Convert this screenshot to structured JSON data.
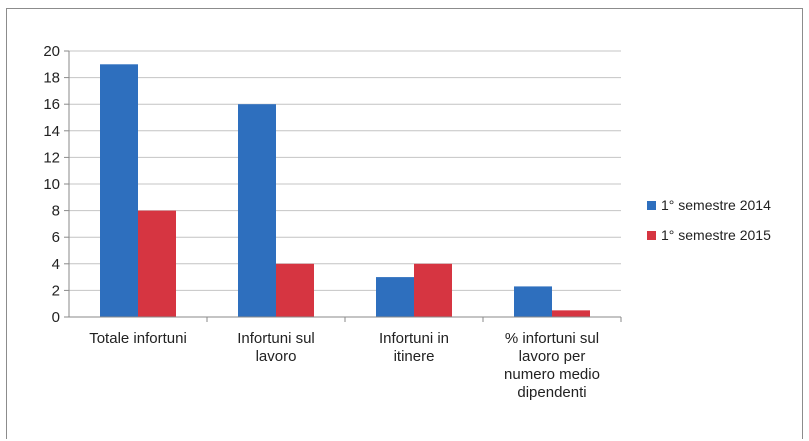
{
  "chart_data": {
    "type": "bar",
    "title": "",
    "xlabel": "",
    "ylabel": "",
    "ylim": [
      0,
      20
    ],
    "yticks": [
      0,
      2,
      4,
      6,
      8,
      10,
      12,
      14,
      16,
      18,
      20
    ],
    "grid": true,
    "legend_position": "right",
    "categories": [
      [
        "Totale infortuni"
      ],
      [
        "Infortuni sul",
        "lavoro"
      ],
      [
        "Infortuni in",
        "itinere"
      ],
      [
        "% infortuni sul",
        "lavoro per",
        "numero medio",
        "dipendenti"
      ]
    ],
    "series": [
      {
        "name": "1° semestre 2014",
        "color": "#2e6fbe",
        "values": [
          19,
          16,
          3,
          2.3
        ]
      },
      {
        "name": "1° semestre 2015",
        "color": "#d63541",
        "values": [
          8,
          4,
          4,
          0.5
        ]
      }
    ]
  }
}
